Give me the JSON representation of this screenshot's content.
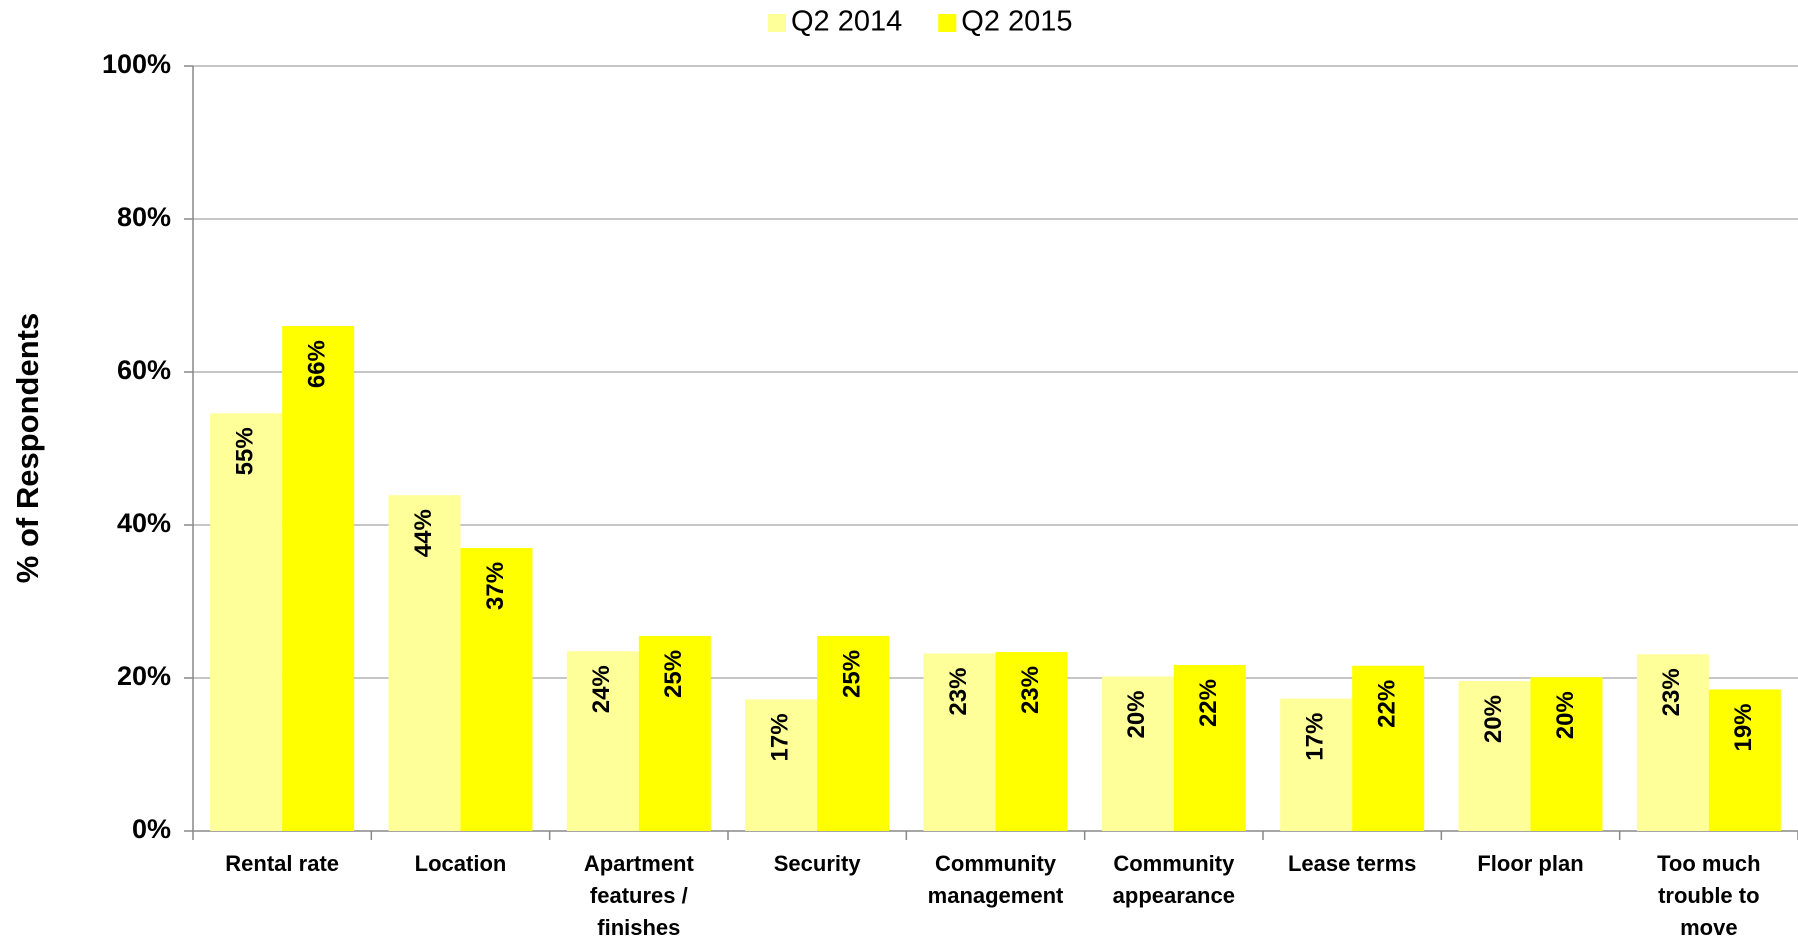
{
  "chart_data": {
    "type": "bar",
    "y_label": "% of Respondents",
    "categories": [
      "Rental rate",
      "Location",
      "Apartment features / finishes",
      "Security",
      "Community management",
      "Community appearance",
      "Lease terms",
      "Floor plan",
      "Too much trouble to move"
    ],
    "series": [
      {
        "name": "Q2 2014",
        "color": "#ffff99",
        "values": [
          54.6,
          43.9,
          23.5,
          17.2,
          23.2,
          20.2,
          17.3,
          19.6,
          23.1
        ],
        "value_labels": [
          "55%",
          "44%",
          "24%",
          "17%",
          "23%",
          "20%",
          "17%",
          "20%",
          "23%"
        ]
      },
      {
        "name": "Q2 2015",
        "color": "#ffff00",
        "values": [
          66.0,
          37.0,
          25.5,
          25.5,
          23.4,
          21.7,
          21.6,
          20.1,
          18.5
        ],
        "value_labels": [
          "66%",
          "37%",
          "25%",
          "25%",
          "23%",
          "22%",
          "22%",
          "20%",
          "19%"
        ]
      }
    ],
    "ylim": [
      0,
      100
    ],
    "yticks": [
      {
        "value": 0,
        "label": "0%"
      },
      {
        "value": 20,
        "label": "20%"
      },
      {
        "value": 40,
        "label": "40%"
      },
      {
        "value": 60,
        "label": "60%"
      },
      {
        "value": 80,
        "label": "80%"
      },
      {
        "value": 100,
        "label": "100%"
      }
    ],
    "grid": true,
    "legend": "top"
  }
}
